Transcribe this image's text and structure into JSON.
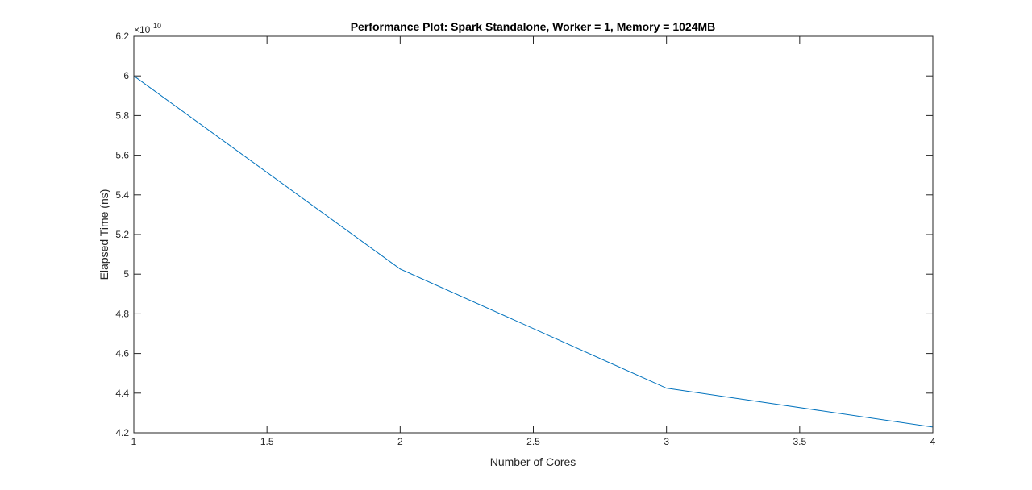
{
  "chart_data": {
    "type": "line",
    "title": "Performance Plot: Spark Standalone, Worker = 1, Memory = 1024MB",
    "xlabel": "Number of Cores",
    "ylabel": "Elapsed Time (ns)",
    "y_exponent_label": "×10",
    "y_exponent": "10",
    "xlim": [
      1,
      4
    ],
    "ylim": [
      4.2,
      6.2
    ],
    "x_ticks": [
      "1",
      "1.5",
      "2",
      "2.5",
      "3",
      "3.5",
      "4"
    ],
    "y_ticks": [
      "4.2",
      "4.4",
      "4.6",
      "4.8",
      "5",
      "5.2",
      "5.4",
      "5.6",
      "5.8",
      "6",
      "6.2"
    ],
    "grid": false,
    "series": [
      {
        "x": [
          1,
          2,
          3,
          4
        ],
        "values": [
          6.0,
          5.026,
          4.425,
          4.229
        ],
        "color": "#0072bd"
      }
    ]
  }
}
